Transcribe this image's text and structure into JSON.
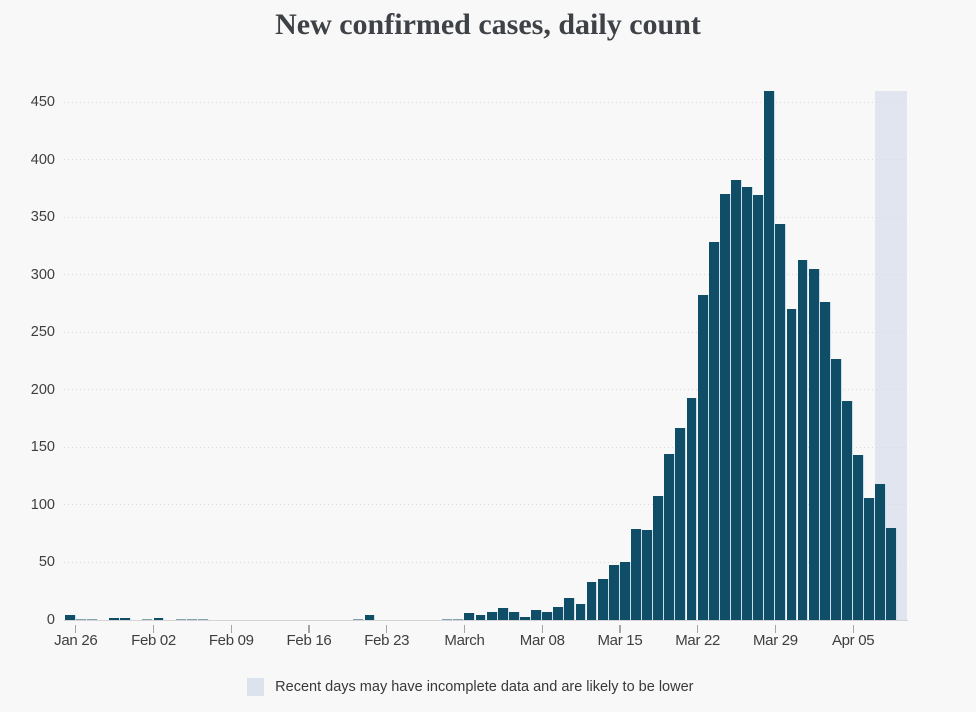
{
  "title": "New confirmed cases, daily count",
  "legend": {
    "swatch_color": "#dde3ec",
    "label": "Recent days may have incomplete data and are likely to be lower"
  },
  "colors": {
    "background": "#f8f8f8",
    "bar": "#104d67",
    "highlight_band": "#e0e5f0",
    "gridline": "#d6d6d6",
    "axis_line": "#d4d4d4",
    "tick": "#a9a9a9",
    "axis_label": "#3e3e3e",
    "title": "#3e4246"
  },
  "chart_data": {
    "type": "bar",
    "title": "New confirmed cases, daily count",
    "xlabel": "",
    "ylabel": "",
    "ylim": [
      0,
      460
    ],
    "y_ticks": [
      0,
      50,
      100,
      150,
      200,
      250,
      300,
      350,
      400,
      450
    ],
    "grid": "dotted horizontal",
    "legend_position": "bottom center",
    "categories": [
      "Jan 25",
      "Jan 26",
      "Jan 27",
      "Jan 28",
      "Jan 29",
      "Jan 30",
      "Jan 31",
      "Feb 01",
      "Feb 02",
      "Feb 03",
      "Feb 04",
      "Feb 05",
      "Feb 06",
      "Feb 07",
      "Feb 08",
      "Feb 09",
      "Feb 10",
      "Feb 11",
      "Feb 12",
      "Feb 13",
      "Feb 14",
      "Feb 15",
      "Feb 16",
      "Feb 17",
      "Feb 18",
      "Feb 19",
      "Feb 20",
      "Feb 21",
      "Feb 22",
      "Feb 23",
      "Feb 24",
      "Feb 25",
      "Feb 26",
      "Feb 27",
      "Feb 28",
      "Feb 29",
      "Mar 01",
      "Mar 02",
      "Mar 03",
      "Mar 04",
      "Mar 05",
      "Mar 06",
      "Mar 07",
      "Mar 08",
      "Mar 09",
      "Mar 10",
      "Mar 11",
      "Mar 12",
      "Mar 13",
      "Mar 14",
      "Mar 15",
      "Mar 16",
      "Mar 17",
      "Mar 18",
      "Mar 19",
      "Mar 20",
      "Mar 21",
      "Mar 22",
      "Mar 23",
      "Mar 24",
      "Mar 25",
      "Mar 26",
      "Mar 27",
      "Mar 28",
      "Mar 29",
      "Mar 30",
      "Mar 31",
      "Apr 01",
      "Apr 02",
      "Apr 03",
      "Apr 04",
      "Apr 05",
      "Apr 06",
      "Apr 07",
      "Apr 08"
    ],
    "values": [
      4,
      1,
      1,
      0,
      2,
      2,
      0,
      1,
      2,
      0,
      1,
      1,
      1,
      0,
      0,
      0,
      0,
      0,
      0,
      0,
      0,
      0,
      0,
      0,
      0,
      0,
      1,
      4,
      0,
      0,
      0,
      0,
      0,
      0,
      1,
      1,
      6,
      4,
      7,
      10,
      7,
      3,
      9,
      7,
      11,
      19,
      14,
      33,
      36,
      48,
      50,
      79,
      78,
      108,
      144,
      167,
      193,
      282,
      328,
      370,
      382,
      376,
      369,
      460,
      344,
      270,
      313,
      305,
      276,
      227,
      190,
      143,
      106,
      118,
      80
    ],
    "x_tick_labels": [
      {
        "label": "Jan 26",
        "day": 1
      },
      {
        "label": "Feb 02",
        "day": 8
      },
      {
        "label": "Feb 09",
        "day": 15
      },
      {
        "label": "Feb 16",
        "day": 22
      },
      {
        "label": "Feb 23",
        "day": 29
      },
      {
        "label": "March",
        "day": 36
      },
      {
        "label": "Mar 08",
        "day": 43
      },
      {
        "label": "Mar 15",
        "day": 50
      },
      {
        "label": "Mar 22",
        "day": 57
      },
      {
        "label": "Mar 29",
        "day": 64
      },
      {
        "label": "Apr 05",
        "day": 71
      }
    ],
    "highlight_band": {
      "from_day": 73,
      "to_day": 75,
      "note": "Recent days may have incomplete data and are likely to be lower"
    }
  }
}
